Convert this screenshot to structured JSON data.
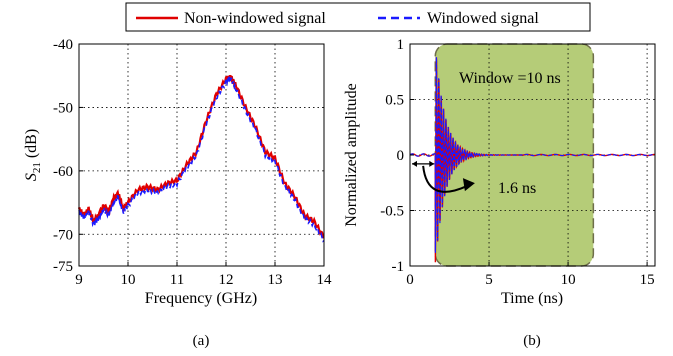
{
  "legend": {
    "items": [
      {
        "label": "Non-windowed signal",
        "color": "#e00000",
        "dash": "solid"
      },
      {
        "label": "Windowed signal",
        "color": "#1a1aff",
        "dash": "dashed"
      }
    ],
    "placement": "top"
  },
  "chart_data": [
    {
      "type": "line",
      "panel_label": "(a)",
      "xlabel": "Frequency (GHz)",
      "ylabel_main": "S",
      "ylabel_sub": "21",
      "ylabel_rest": " (dB)",
      "xlim": [
        9,
        14
      ],
      "ylim": [
        -75,
        -40
      ],
      "xticks": [
        "9",
        "10",
        "11",
        "12",
        "13",
        "14"
      ],
      "yticks": [
        {
          "value": -40,
          "label": "-40"
        },
        {
          "value": -50,
          "label": "-50"
        },
        {
          "value": -60,
          "label": "-60"
        },
        {
          "value": -70,
          "label": "-70"
        },
        {
          "value": -75,
          "label": "-75"
        }
      ],
      "grid": true,
      "series": [
        {
          "name": "Non-windowed signal",
          "color": "#e00000",
          "x": [
            9.0,
            9.1,
            9.2,
            9.3,
            9.4,
            9.5,
            9.6,
            9.7,
            9.8,
            9.9,
            10.0,
            10.2,
            10.4,
            10.6,
            10.8,
            11.0,
            11.2,
            11.4,
            11.6,
            11.8,
            12.0,
            12.1,
            12.2,
            12.4,
            12.6,
            12.8,
            13.0,
            13.2,
            13.4,
            13.6,
            13.8,
            14.0
          ],
          "y": [
            -66,
            -67,
            -66,
            -68,
            -67,
            -65.5,
            -66.5,
            -64.5,
            -63.5,
            -66,
            -65,
            -63,
            -62.5,
            -63,
            -62,
            -61.5,
            -59,
            -57,
            -52,
            -48,
            -45.5,
            -45.2,
            -46.5,
            -50,
            -53,
            -57,
            -58,
            -62,
            -64,
            -67,
            -68,
            -70.5
          ]
        },
        {
          "name": "Windowed signal",
          "color": "#1a1aff",
          "x": [
            9.0,
            9.1,
            9.2,
            9.3,
            9.4,
            9.5,
            9.6,
            9.7,
            9.8,
            9.9,
            10.0,
            10.2,
            10.4,
            10.6,
            10.8,
            11.0,
            11.2,
            11.4,
            11.6,
            11.8,
            12.0,
            12.1,
            12.2,
            12.4,
            12.6,
            12.8,
            13.0,
            13.2,
            13.4,
            13.6,
            13.8,
            14.0
          ],
          "y": [
            -66.5,
            -67.5,
            -66.5,
            -68.5,
            -67.5,
            -66,
            -67,
            -65,
            -64,
            -66.5,
            -65.5,
            -63.5,
            -63,
            -63.5,
            -62.5,
            -62,
            -59.5,
            -57.5,
            -52.5,
            -48.5,
            -46,
            -45.5,
            -47,
            -50.5,
            -53.5,
            -57.5,
            -58.5,
            -62.5,
            -64.5,
            -67.5,
            -68.5,
            -71
          ]
        }
      ]
    },
    {
      "type": "line",
      "panel_label": "(b)",
      "xlabel": "Time (ns)",
      "ylabel": "Normalized amplitude",
      "xlim": [
        0,
        15.5
      ],
      "ylim": [
        -1,
        1
      ],
      "xticks": [
        {
          "value": 0,
          "label": "0"
        },
        {
          "value": 5,
          "label": "5"
        },
        {
          "value": 10,
          "label": "10"
        },
        {
          "value": 15,
          "label": "15"
        }
      ],
      "yticks": [
        {
          "value": 1,
          "label": "1"
        },
        {
          "value": 0.5,
          "label": "0.5"
        },
        {
          "value": 0,
          "label": "0"
        },
        {
          "value": -0.5,
          "label": "-0.5"
        },
        {
          "value": -1,
          "label": "-1"
        }
      ],
      "grid": true,
      "window": {
        "start": 1.6,
        "end": 11.6,
        "ymin": -1,
        "ymax": 1,
        "color": "#b5cc78",
        "edge": "#6e6e4a"
      },
      "annotations": {
        "window_text": "Window =10 ns",
        "delay_text": "1.6 ns",
        "delay_start": 0,
        "delay_end": 1.6
      },
      "signal": {
        "pre_start": 0,
        "pulse_start": 1.6,
        "peak_amplitude": 1.0,
        "decay_ns": 0.6,
        "period_ns": 0.15,
        "settle_ns": 5.5,
        "end": 15.5
      }
    }
  ]
}
